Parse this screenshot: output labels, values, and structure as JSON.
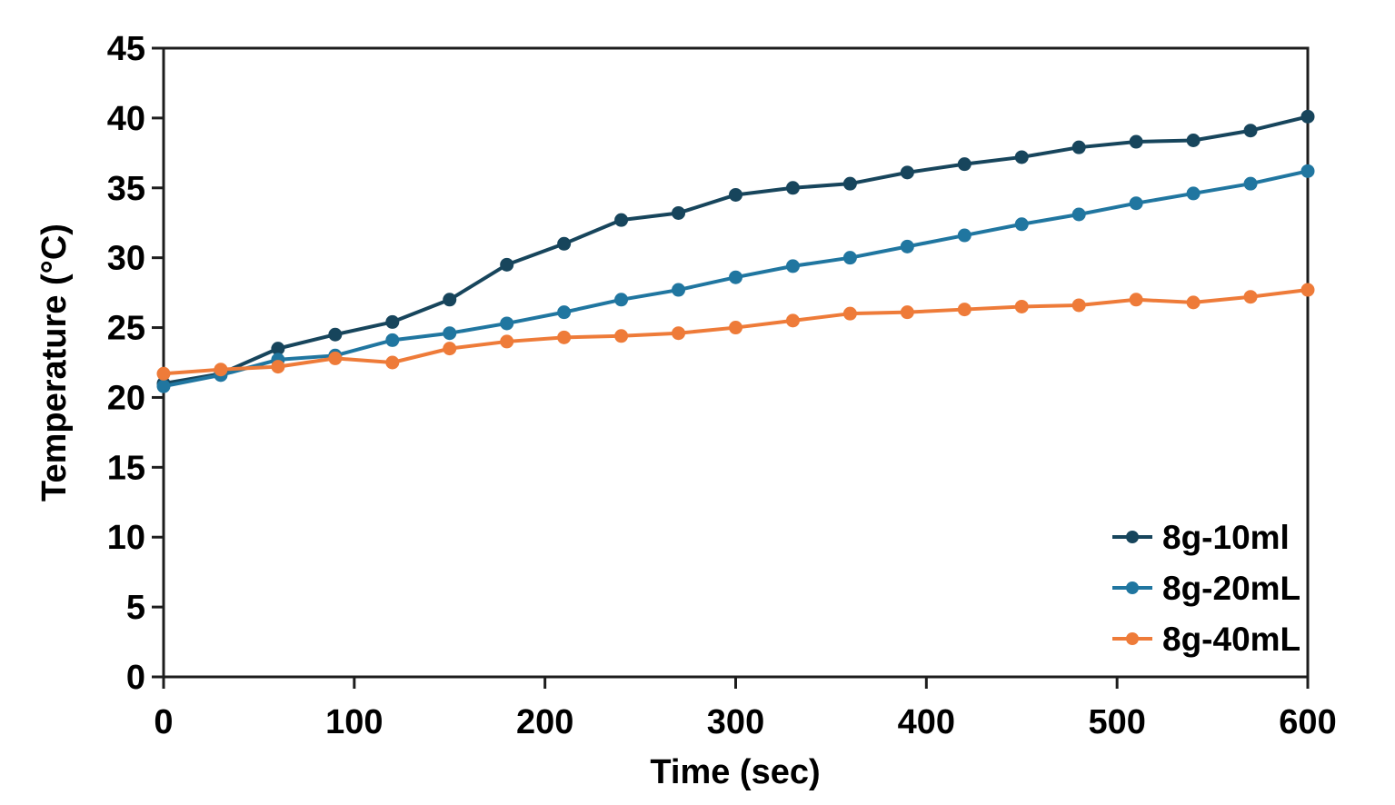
{
  "chart_data": {
    "type": "line",
    "title": "",
    "xlabel": "Time (sec)",
    "ylabel": "Temperature (°C)",
    "xlim": [
      0,
      600
    ],
    "ylim": [
      0,
      45
    ],
    "x_ticks": [
      0,
      100,
      200,
      300,
      400,
      500,
      600
    ],
    "y_ticks": [
      0,
      5,
      10,
      15,
      20,
      25,
      30,
      35,
      40,
      45
    ],
    "grid": false,
    "legend_position": "lower right",
    "axis_color": "#1d1d1d",
    "x": [
      0,
      30,
      60,
      90,
      120,
      150,
      180,
      210,
      240,
      270,
      300,
      330,
      360,
      390,
      420,
      450,
      480,
      510,
      540,
      570,
      600
    ],
    "series": [
      {
        "name": "8g-10ml",
        "color": "#17455c",
        "values": [
          21.0,
          21.7,
          23.5,
          24.5,
          25.4,
          27.0,
          29.5,
          31.0,
          32.7,
          33.2,
          34.5,
          35.0,
          35.3,
          36.1,
          36.7,
          37.2,
          37.9,
          38.3,
          38.4,
          39.1,
          40.1
        ]
      },
      {
        "name": "8g-20mL",
        "color": "#2076a0",
        "values": [
          20.8,
          21.6,
          22.7,
          23.0,
          24.1,
          24.6,
          25.3,
          26.1,
          27.0,
          27.7,
          28.6,
          29.4,
          30.0,
          30.8,
          31.6,
          32.4,
          33.1,
          33.9,
          34.6,
          35.3,
          36.2
        ]
      },
      {
        "name": "8g-40mL",
        "color": "#ee7b39",
        "values": [
          21.7,
          22.0,
          22.2,
          22.8,
          22.5,
          23.5,
          24.0,
          24.3,
          24.4,
          24.6,
          25.0,
          25.5,
          26.0,
          26.1,
          26.3,
          26.5,
          26.6,
          27.0,
          26.8,
          27.2,
          27.7
        ]
      }
    ]
  }
}
